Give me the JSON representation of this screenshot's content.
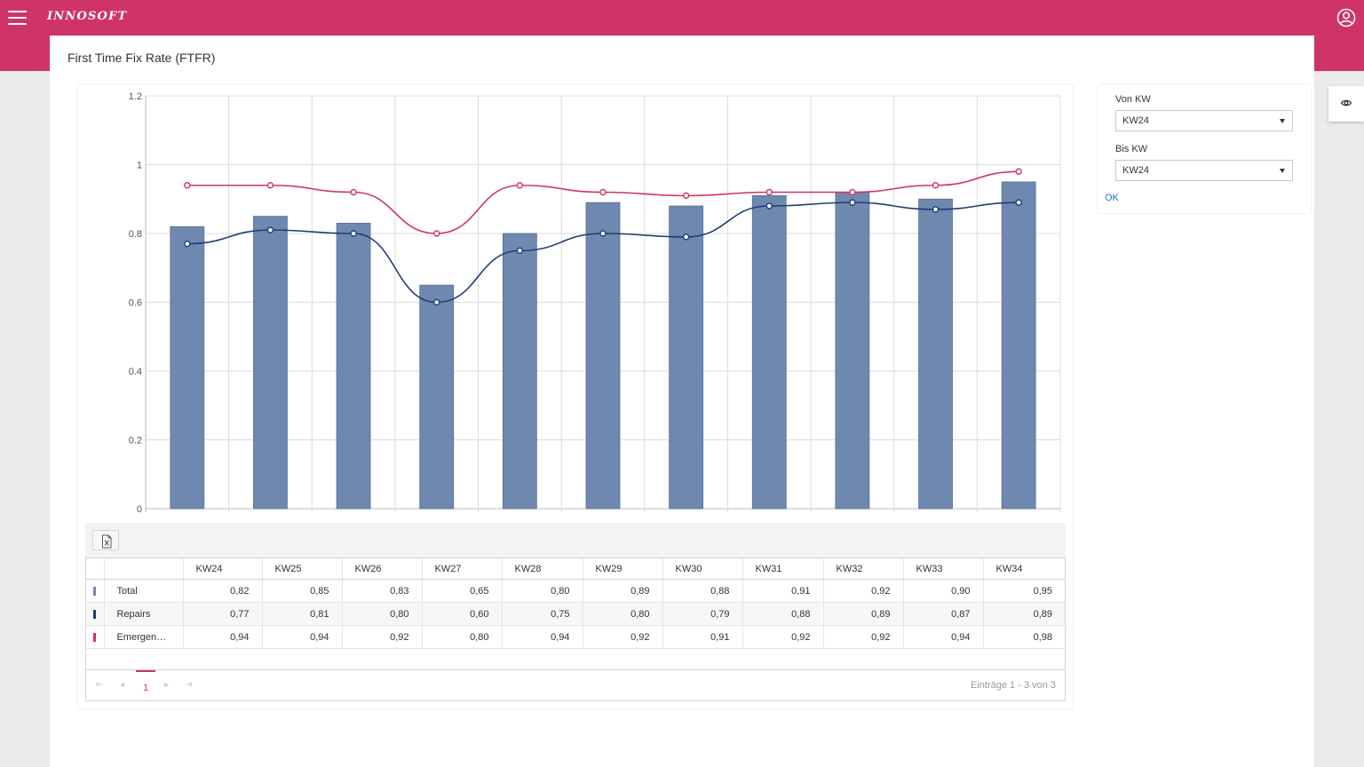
{
  "header": {
    "logo": "INNOSOFT",
    "menu_icon": "hamburger-menu-icon",
    "user_icon": "user-account-icon"
  },
  "page": {
    "title": "First Time Fix Rate (FTFR)"
  },
  "colors": {
    "brand": "#cf3467",
    "total": "#6f88b0",
    "repairs": "#1f3d73",
    "emergency": "#cf3467",
    "link": "#1a78c2"
  },
  "chart_data": {
    "type": "bar",
    "title": "",
    "xlabel": "",
    "ylabel": "",
    "ylim": [
      0,
      1.2
    ],
    "yticks": [
      "0",
      "0.2",
      "0.4",
      "0.6",
      "0.8",
      "1",
      "1.2"
    ],
    "categories": [
      "KW24",
      "KW25",
      "KW26",
      "KW27",
      "KW28",
      "KW29",
      "KW30",
      "KW31",
      "KW32",
      "KW33",
      "KW34"
    ],
    "series": [
      {
        "name": "Total",
        "kind": "bar",
        "values": [
          0.82,
          0.85,
          0.83,
          0.65,
          0.8,
          0.89,
          0.88,
          0.91,
          0.92,
          0.9,
          0.95
        ]
      },
      {
        "name": "Repairs",
        "kind": "line",
        "values": [
          0.77,
          0.81,
          0.8,
          0.6,
          0.75,
          0.8,
          0.79,
          0.88,
          0.89,
          0.87,
          0.89
        ]
      },
      {
        "name": "Emergency",
        "kind": "line",
        "values": [
          0.94,
          0.94,
          0.92,
          0.8,
          0.94,
          0.92,
          0.91,
          0.92,
          0.92,
          0.94,
          0.98
        ]
      }
    ]
  },
  "grid": {
    "export_icon": "excel-export-icon",
    "columns": [
      "KW24",
      "KW25",
      "KW26",
      "KW27",
      "KW28",
      "KW29",
      "KW30",
      "KW31",
      "KW32",
      "KW33",
      "KW34"
    ],
    "rows": [
      {
        "name": "Total",
        "values": [
          "0,82",
          "0,85",
          "0,83",
          "0,65",
          "0,80",
          "0,89",
          "0,88",
          "0,91",
          "0,92",
          "0,90",
          "0,95"
        ]
      },
      {
        "name": "Repairs",
        "values": [
          "0,77",
          "0,81",
          "0,80",
          "0,60",
          "0,75",
          "0,80",
          "0,79",
          "0,88",
          "0,89",
          "0,87",
          "0,89"
        ]
      },
      {
        "name": "Emergen…",
        "values": [
          "0,94",
          "0,94",
          "0,92",
          "0,80",
          "0,94",
          "0,92",
          "0,91",
          "0,92",
          "0,92",
          "0,94",
          "0,98"
        ]
      }
    ],
    "pager": {
      "first": "⇤",
      "prev": "◂",
      "page": "1",
      "next": "▸",
      "last": "⇥",
      "info": "Einträge 1 - 3 von 3"
    }
  },
  "filter": {
    "from_label": "Von KW",
    "from_value": "KW24",
    "to_label": "Bis KW",
    "to_value": "KW24",
    "ok_label": "OK"
  },
  "side": {
    "eye_icon": "eye-icon"
  }
}
